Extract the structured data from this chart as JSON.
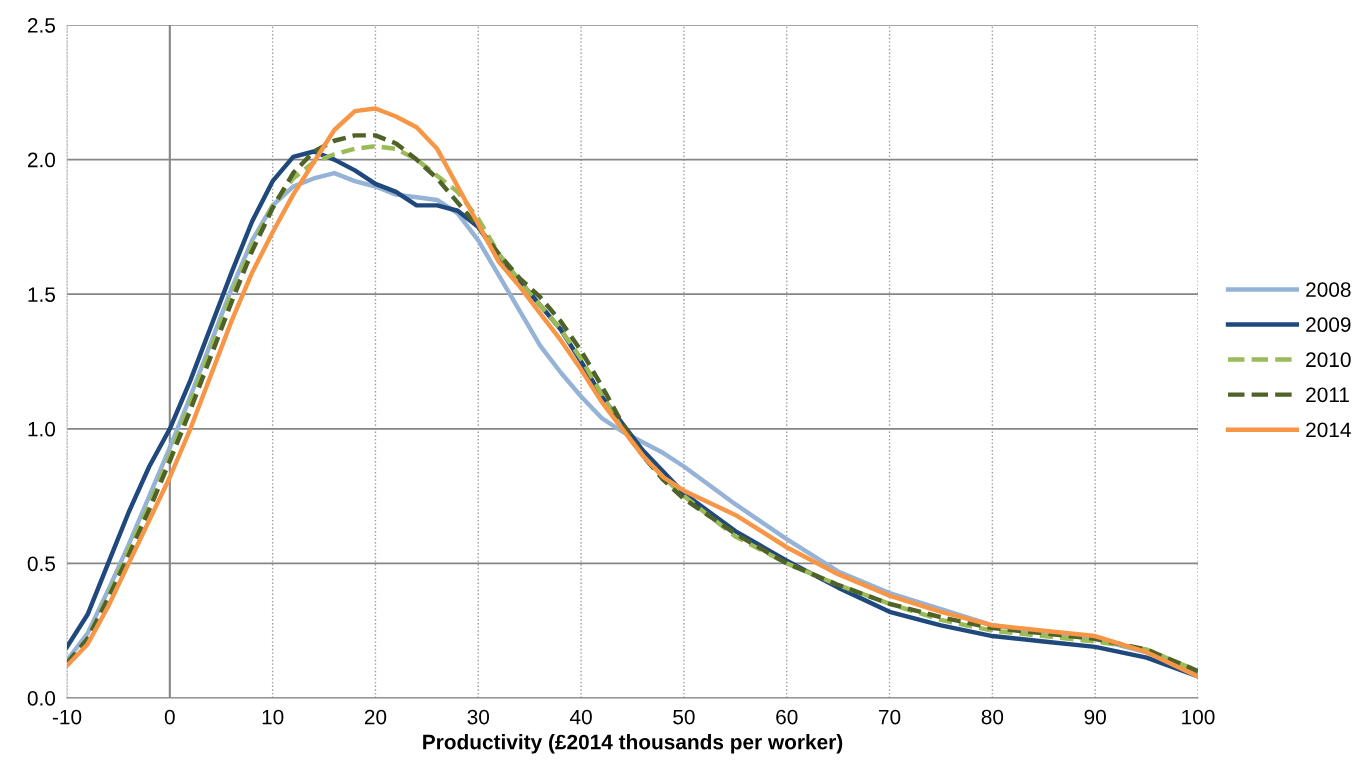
{
  "chart_data": {
    "type": "line",
    "xlabel": "Productivity (£2014 thousands per worker)",
    "x": [
      -10,
      -8,
      -6,
      -4,
      -2,
      0,
      2,
      4,
      6,
      8,
      10,
      12,
      14,
      16,
      18,
      20,
      22,
      24,
      26,
      28,
      30,
      32,
      34,
      36,
      38,
      40,
      42,
      44,
      46,
      48,
      50,
      55,
      60,
      65,
      70,
      75,
      80,
      85,
      90,
      95,
      100
    ],
    "series": [
      {
        "name": "2008",
        "color": "#95b3d7",
        "line_style": "solid",
        "values": [
          0.14,
          0.24,
          0.4,
          0.57,
          0.75,
          0.93,
          1.12,
          1.32,
          1.52,
          1.7,
          1.83,
          1.9,
          1.93,
          1.95,
          1.92,
          1.9,
          1.87,
          1.86,
          1.85,
          1.8,
          1.7,
          1.57,
          1.44,
          1.31,
          1.21,
          1.12,
          1.04,
          0.99,
          0.95,
          0.91,
          0.86,
          0.72,
          0.59,
          0.47,
          0.39,
          0.33,
          0.27,
          0.24,
          0.22,
          0.17,
          0.09
        ]
      },
      {
        "name": "2009",
        "color": "#1f497d",
        "line_style": "solid",
        "values": [
          0.19,
          0.31,
          0.5,
          0.69,
          0.86,
          1.0,
          1.18,
          1.38,
          1.58,
          1.77,
          1.92,
          2.01,
          2.03,
          2.0,
          1.96,
          1.91,
          1.88,
          1.83,
          1.83,
          1.81,
          1.75,
          1.64,
          1.55,
          1.46,
          1.37,
          1.25,
          1.12,
          1.02,
          0.92,
          0.84,
          0.76,
          0.62,
          0.51,
          0.41,
          0.32,
          0.27,
          0.23,
          0.21,
          0.19,
          0.15,
          0.08
        ]
      },
      {
        "name": "2010",
        "color": "#9bbb59",
        "line_style": "dashed",
        "values": [
          0.13,
          0.22,
          0.38,
          0.55,
          0.72,
          0.9,
          1.1,
          1.3,
          1.5,
          1.68,
          1.83,
          1.93,
          1.99,
          2.02,
          2.04,
          2.05,
          2.04,
          2.0,
          1.94,
          1.88,
          1.78,
          1.65,
          1.55,
          1.46,
          1.37,
          1.26,
          1.13,
          1.0,
          0.9,
          0.82,
          0.75,
          0.6,
          0.5,
          0.42,
          0.35,
          0.29,
          0.25,
          0.23,
          0.21,
          0.18,
          0.1
        ]
      },
      {
        "name": "2011",
        "color": "#4f6228",
        "line_style": "dashed",
        "values": [
          0.13,
          0.22,
          0.37,
          0.53,
          0.7,
          0.88,
          1.07,
          1.27,
          1.47,
          1.66,
          1.82,
          1.95,
          2.03,
          2.07,
          2.09,
          2.09,
          2.06,
          2.0,
          1.93,
          1.84,
          1.75,
          1.65,
          1.56,
          1.49,
          1.4,
          1.29,
          1.16,
          1.02,
          0.9,
          0.81,
          0.74,
          0.61,
          0.5,
          0.42,
          0.35,
          0.3,
          0.26,
          0.24,
          0.22,
          0.18,
          0.1
        ]
      },
      {
        "name": "2014",
        "color": "#f79646",
        "line_style": "solid",
        "values": [
          0.12,
          0.2,
          0.34,
          0.5,
          0.66,
          0.82,
          1.0,
          1.2,
          1.4,
          1.58,
          1.73,
          1.87,
          1.99,
          2.11,
          2.18,
          2.19,
          2.16,
          2.12,
          2.04,
          1.9,
          1.76,
          1.62,
          1.53,
          1.43,
          1.33,
          1.22,
          1.1,
          1.0,
          0.9,
          0.82,
          0.77,
          0.68,
          0.56,
          0.46,
          0.38,
          0.32,
          0.27,
          0.25,
          0.23,
          0.17,
          0.08
        ]
      }
    ],
    "xlim": [
      -10,
      100
    ],
    "xticks": [
      -10,
      0,
      10,
      20,
      30,
      40,
      50,
      60,
      70,
      80,
      90,
      100
    ],
    "ylim": [
      0,
      2.5
    ],
    "yticks": [
      {
        "value": 0,
        "label": "0.0"
      },
      {
        "value": 0.5,
        "label": "0.5"
      },
      {
        "value": 1,
        "label": "1.0"
      },
      {
        "value": 1.5,
        "label": "1.5"
      },
      {
        "value": 2,
        "label": "2.0"
      },
      {
        "value": 2.5,
        "label": "2.5"
      }
    ],
    "ref_lines": [
      {
        "axis": "x",
        "value": 0,
        "color": "#868686",
        "line_style": "solid"
      }
    ],
    "grid": true,
    "legend": "right"
  }
}
